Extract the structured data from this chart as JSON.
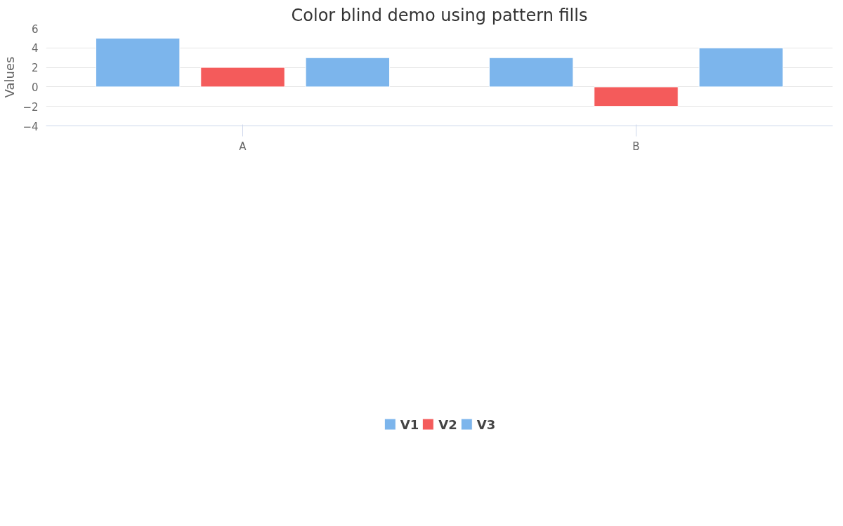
{
  "chart_data": {
    "type": "bar",
    "title": "Color blind demo using pattern fills",
    "ylabel": "Values",
    "categories": [
      "A",
      "B"
    ],
    "series": [
      {
        "name": "V1",
        "color": "#7cb5ec",
        "values": [
          5,
          3
        ]
      },
      {
        "name": "V2",
        "color": "#f45b5b",
        "values": [
          2,
          -2
        ]
      },
      {
        "name": "V3",
        "color": "#7cb5ec",
        "values": [
          3,
          4
        ]
      }
    ],
    "ylim": [
      -4,
      6
    ],
    "yticks": [
      {
        "value": -4,
        "label": "−4"
      },
      {
        "value": -2,
        "label": "−2"
      },
      0,
      2,
      4,
      6
    ],
    "grid": "y",
    "legend": "bottom"
  }
}
